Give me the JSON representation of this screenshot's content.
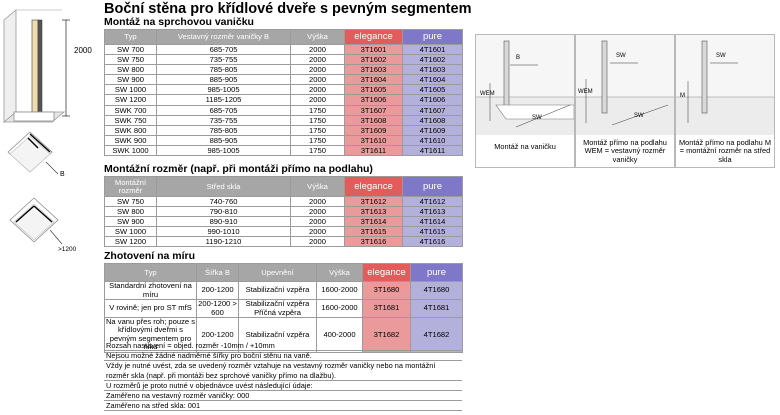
{
  "title": "Boční stěna pro křídlové dveře s pevným segmentem",
  "left_dimension": "2000",
  "sections": {
    "s1": "Montáž na sprchovou vaničku",
    "s2": "Montážní rozměr (např. při montáži přímo na podlahu)",
    "s3": "Zhotovení na míru"
  },
  "table1": {
    "headers": [
      "Typ",
      "Vestavný rozměr vaničky B",
      "Výška",
      "elegance",
      "pure"
    ],
    "rows": [
      [
        "SW 700",
        "685-705",
        "2000",
        "3T1601",
        "4T1601"
      ],
      [
        "SW 750",
        "735-755",
        "2000",
        "3T1602",
        "4T1602"
      ],
      [
        "SW 800",
        "785-805",
        "2000",
        "3T1603",
        "4T1603"
      ],
      [
        "SW 900",
        "885-905",
        "2000",
        "3T1604",
        "4T1604"
      ],
      [
        "SW 1000",
        "985-1005",
        "2000",
        "3T1605",
        "4T1605"
      ],
      [
        "SW 1200",
        "1185-1205",
        "2000",
        "3T1606",
        "4T1606"
      ],
      [
        "SWK 700",
        "685-705",
        "1750",
        "3T1607",
        "4T1607"
      ],
      [
        "SWK 750",
        "735-755",
        "1750",
        "3T1608",
        "4T1608"
      ],
      [
        "SWK 800",
        "785-805",
        "1750",
        "3T1609",
        "4T1609"
      ],
      [
        "SWK 900",
        "885-905",
        "1750",
        "3T1610",
        "4T1610"
      ],
      [
        "SWK 1000",
        "985-1005",
        "1750",
        "3T1611",
        "4T1611"
      ]
    ]
  },
  "table2": {
    "headers": [
      "Montážní rozměr",
      "Střed skla",
      "Výška",
      "elegance",
      "pure"
    ],
    "rows": [
      [
        "SW 750",
        "740-760",
        "2000",
        "3T1612",
        "4T1612"
      ],
      [
        "SW 800",
        "790-810",
        "2000",
        "3T1613",
        "4T1613"
      ],
      [
        "SW 900",
        "890-910",
        "2000",
        "3T1614",
        "4T1614"
      ],
      [
        "SW 1000",
        "990-1010",
        "2000",
        "3T1615",
        "4T1615"
      ],
      [
        "SW 1200",
        "1190-1210",
        "2000",
        "3T1616",
        "4T1616"
      ]
    ]
  },
  "table3": {
    "headers": [
      "Typ",
      "Šířka B",
      "Upevnění",
      "Výška",
      "elegance",
      "pure"
    ],
    "rows": [
      [
        "Standardní zhotovení na míru",
        "200-1200",
        "Stabilizační vzpěra",
        "1600-2000",
        "3T1680",
        "4T1680"
      ],
      [
        "V rovině; jen pro ST mfS",
        "200-1200 > 600",
        "Stabilizační vzpěra Příčná vzpěra",
        "1600-2000",
        "3T1681",
        "4T1681"
      ],
      [
        "Na vanu přes roh; pouze s křídlovými dveřmi s pevným segmentem pro niku",
        "200-1200",
        "Stabilizační vzpěra",
        "400-2000",
        "3T1682",
        "4T1682"
      ]
    ]
  },
  "notes": [
    "Rozsah nastavení = objed. rozměr -10mm / +10mm",
    "Nejsou možné žádné nadměrné šířky pro boční stěnu na vaně.",
    "Vždy je nutné uvést, zda se uvedený rozměr vztahuje na vestavný rozměr vaničky nebo na montážní rozměr skla (např. při montáži bez sprchové vaničky přímo na dlažbu).",
    "U rozměrů je proto nutné v objednávce uvést následující údaje:",
    "Zaměřeno na vestavný rozměr vaničky: 000",
    "Zaměřeno na střed skla: 001"
  ],
  "diagrams": [
    {
      "caption": "Montáž na vaničku",
      "labels": [
        "B",
        "WEM",
        "SW"
      ]
    },
    {
      "caption": "Montáž přímo na podlahu WEM = vestavný rozměr vaničky",
      "labels": [
        "WEM",
        "SW",
        "SW"
      ]
    },
    {
      "caption": "Montáž přímo na podlahu M = montážní rozměr na střed skla",
      "labels": [
        "M",
        "SW"
      ]
    }
  ],
  "left_labels": {
    "b": "B",
    "gt1200": ">1200"
  }
}
